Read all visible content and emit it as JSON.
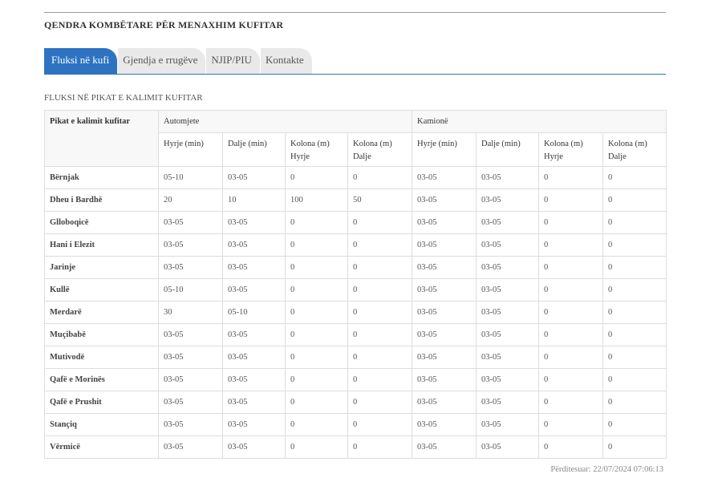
{
  "header": {
    "title": "QENDRA KOMBËTARE PËR MENAXHIM KUFITAR"
  },
  "tabs": [
    "Fluksi në kufi",
    "Gjendja e rrugëve",
    "NJIP/PIU",
    "Kontakte"
  ],
  "section_title": "FLUKSI NË PIKAT E KALIMIT KUFITAR",
  "table": {
    "corner": "Pikat e kalimit kufitar",
    "groups": [
      "Automjete",
      "Kamionë"
    ],
    "columns": [
      "Hyrje (min)",
      "Dalje (min)",
      "Kolona (m) Hyrje",
      "Kolona (m) Dalje",
      "Hyrje (min)",
      "Dalje (min)",
      "Kolona (m) Hyrje",
      "Kolona (m) Dalje"
    ],
    "rows": [
      [
        "Bërnjak",
        "05-10",
        "03-05",
        "0",
        "0",
        "03-05",
        "03-05",
        "0",
        "0"
      ],
      [
        "Dheu i Bardhë",
        "20",
        "10",
        "100",
        "50",
        "03-05",
        "03-05",
        "0",
        "0"
      ],
      [
        "Glloboqicë",
        "03-05",
        "03-05",
        "0",
        "0",
        "03-05",
        "03-05",
        "0",
        "0"
      ],
      [
        "Hani i Elezit",
        "03-05",
        "03-05",
        "0",
        "0",
        "03-05",
        "03-05",
        "0",
        "0"
      ],
      [
        "Jarinje",
        "03-05",
        "03-05",
        "0",
        "0",
        "03-05",
        "03-05",
        "0",
        "0"
      ],
      [
        "Kullë",
        "05-10",
        "03-05",
        "0",
        "0",
        "03-05",
        "03-05",
        "0",
        "0"
      ],
      [
        "Merdarë",
        "30",
        "05-10",
        "0",
        "0",
        "03-05",
        "03-05",
        "0",
        "0"
      ],
      [
        "Muçibabë",
        "03-05",
        "03-05",
        "0",
        "0",
        "03-05",
        "03-05",
        "0",
        "0"
      ],
      [
        "Mutivodë",
        "03-05",
        "03-05",
        "0",
        "0",
        "03-05",
        "03-05",
        "0",
        "0"
      ],
      [
        "Qafë e Morinës",
        "03-05",
        "03-05",
        "0",
        "0",
        "03-05",
        "03-05",
        "0",
        "0"
      ],
      [
        "Qafë e Prushit",
        "03-05",
        "03-05",
        "0",
        "0",
        "03-05",
        "03-05",
        "0",
        "0"
      ],
      [
        "Stançiq",
        "03-05",
        "03-05",
        "0",
        "0",
        "03-05",
        "03-05",
        "0",
        "0"
      ],
      [
        "Vërmicë",
        "03-05",
        "03-05",
        "0",
        "0",
        "03-05",
        "03-05",
        "0",
        "0"
      ]
    ]
  },
  "footer": "Përditesuar: 22/07/2024 07:06:13"
}
